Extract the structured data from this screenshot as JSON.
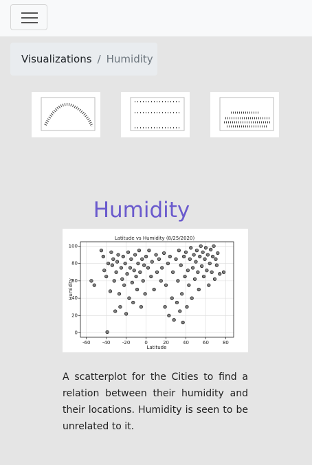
{
  "breadcrumb": {
    "items": [
      "Visualizations",
      "Humidity"
    ],
    "separator": "/"
  },
  "heading": "Humidity",
  "description": "A scatterplot for the Cities to find a relation between their humidity and their locations. Humidity is seen to be unrelated to it.",
  "chart_data": {
    "type": "scatter",
    "title": "Latitude vs Humidity (8/25/2020)",
    "x_label": "Latitude",
    "y_label": "Humidity",
    "color": "#7f7f7f",
    "edgecolor": "#000000",
    "grid": true,
    "xlim": [
      -66,
      88
    ],
    "ylim": [
      -5,
      105
    ],
    "xticks": [
      -60,
      -40,
      -20,
      0,
      20,
      40,
      60,
      80
    ],
    "yticks": [
      0,
      20,
      40,
      60,
      80,
      100
    ],
    "x": [
      -55,
      -52,
      -45,
      -43,
      -42,
      -40,
      -39,
      -38,
      -36,
      -35,
      -34,
      -33,
      -32,
      -31,
      -30,
      -29,
      -28,
      -27,
      -26,
      -25,
      -24,
      -23,
      -22,
      -21,
      -20,
      -19,
      -18,
      -17,
      -16,
      -15,
      -14,
      -13,
      -12,
      -11,
      -10,
      -9,
      -8,
      -7,
      -6,
      -5,
      -4,
      -3,
      -2,
      -1,
      0,
      2,
      3,
      5,
      6,
      8,
      10,
      11,
      13,
      15,
      16,
      18,
      19,
      20,
      22,
      23,
      24,
      26,
      27,
      28,
      30,
      31,
      32,
      33,
      34,
      35,
      36,
      37,
      38,
      39,
      40,
      41,
      42,
      43,
      44,
      45,
      46,
      47,
      48,
      49,
      50,
      51,
      52,
      53,
      54,
      55,
      56,
      57,
      58,
      59,
      60,
      61,
      62,
      63,
      64,
      65,
      66,
      67,
      68,
      69,
      70,
      71,
      72,
      74,
      78
    ],
    "values": [
      60,
      55,
      95,
      88,
      72,
      65,
      1,
      80,
      48,
      93,
      78,
      85,
      60,
      25,
      70,
      82,
      90,
      45,
      30,
      75,
      62,
      88,
      55,
      80,
      22,
      68,
      93,
      40,
      75,
      85,
      58,
      35,
      72,
      90,
      65,
      50,
      80,
      95,
      70,
      30,
      85,
      60,
      78,
      45,
      88,
      75,
      95,
      65,
      82,
      50,
      90,
      70,
      85,
      60,
      75,
      92,
      30,
      55,
      80,
      20,
      88,
      40,
      70,
      15,
      85,
      35,
      60,
      95,
      25,
      78,
      45,
      12,
      88,
      65,
      93,
      30,
      72,
      55,
      85,
      98,
      40,
      75,
      90,
      62,
      82,
      95,
      70,
      50,
      88,
      100,
      77,
      93,
      65,
      85,
      98,
      72,
      90,
      55,
      80,
      96,
      70,
      88,
      100,
      62,
      85,
      78,
      92,
      68,
      70
    ]
  }
}
